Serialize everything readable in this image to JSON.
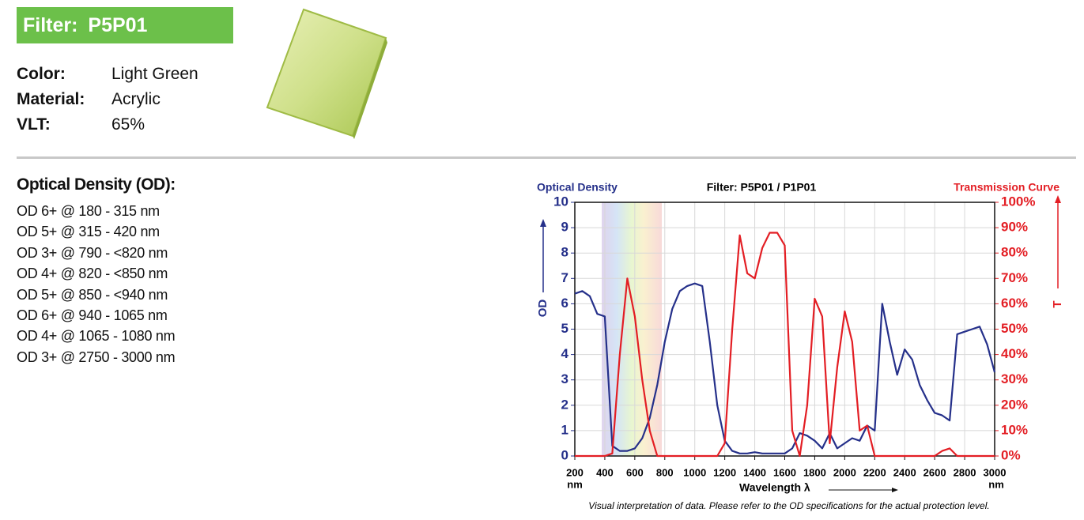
{
  "header": {
    "title": "Filter: P5P01"
  },
  "properties": [
    {
      "label": "Color:",
      "value": "Light Green"
    },
    {
      "label": "Material:",
      "value": "Acrylic"
    },
    {
      "label": "VLT:",
      "value": "65%"
    }
  ],
  "od_section": {
    "title": "Optical Density (OD):",
    "items": [
      "OD 6+ @ 180 - 315 nm",
      "OD 5+ @ 315 - 420 nm",
      "OD 3+ @ 790 - <820 nm",
      "OD 4+ @ 820 - <850 nm",
      "OD 5+ @ 850 - <940 nm",
      "OD 6+ @ 940 - 1065 nm",
      "OD 4+ @ 1065 - 1080 nm",
      "OD 3+ @ 2750 - 3000 nm"
    ]
  },
  "chart_data": {
    "type": "line",
    "title": "Filter: P5P01 / P1P01",
    "x_label": "Wavelength λ",
    "x_unit": "nm",
    "y_label": "OD",
    "y2_label": "T",
    "note": "Visual interpretation of data. Please refer to the OD specifications for the actual protection level.",
    "x": [
      200,
      250,
      300,
      350,
      400,
      450,
      500,
      550,
      600,
      650,
      700,
      750,
      800,
      850,
      900,
      950,
      1000,
      1050,
      1100,
      1150,
      1200,
      1250,
      1300,
      1350,
      1400,
      1450,
      1500,
      1550,
      1600,
      1650,
      1700,
      1750,
      1800,
      1850,
      1900,
      1950,
      2000,
      2050,
      2100,
      2150,
      2200,
      2250,
      2300,
      2350,
      2400,
      2450,
      2500,
      2550,
      2600,
      2650,
      2700,
      2750,
      2800,
      2850,
      2900,
      2950,
      3000
    ],
    "xlim": [
      200,
      3000
    ],
    "xticks": [
      200,
      400,
      600,
      800,
      1000,
      1200,
      1400,
      1600,
      1800,
      2000,
      2200,
      2400,
      2600,
      2800,
      3000
    ],
    "ylim": [
      0,
      10
    ],
    "yticks": [
      0,
      1,
      2,
      3,
      4,
      5,
      6,
      7,
      8,
      9,
      10
    ],
    "y2lim": [
      0,
      100
    ],
    "y2ticks": [
      {
        "value": 0,
        "label": "0%"
      },
      {
        "value": 10,
        "label": "10%"
      },
      {
        "value": 20,
        "label": "20%"
      },
      {
        "value": 30,
        "label": "30%"
      },
      {
        "value": 40,
        "label": "40%"
      },
      {
        "value": 50,
        "label": "50%"
      },
      {
        "value": 60,
        "label": "60%"
      },
      {
        "value": 70,
        "label": "70%"
      },
      {
        "value": 80,
        "label": "80%"
      },
      {
        "value": 90,
        "label": "90%"
      },
      {
        "value": 100,
        "label": "100%"
      }
    ],
    "grid": true,
    "series": [
      {
        "name": "Optical Density",
        "color": "#25308a",
        "values": [
          6.4,
          6.5,
          6.3,
          5.6,
          5.5,
          0.4,
          0.2,
          0.2,
          0.3,
          0.7,
          1.5,
          2.8,
          4.5,
          5.8,
          6.5,
          6.7,
          6.8,
          6.7,
          4.5,
          2.0,
          0.6,
          0.2,
          0.1,
          0.1,
          0.15,
          0.1,
          0.1,
          0.1,
          0.1,
          0.3,
          0.9,
          0.8,
          0.6,
          0.3,
          0.9,
          0.3,
          0.5,
          0.7,
          0.6,
          1.2,
          1.0,
          6.0,
          4.5,
          3.2,
          4.2,
          3.8,
          2.8,
          2.2,
          1.7,
          1.6,
          1.4,
          4.8,
          4.9,
          5.0,
          5.1,
          4.4,
          3.3
        ]
      },
      {
        "name": "Transmission Curve",
        "color": "#e31e24",
        "axis": "y2",
        "values": [
          0,
          0,
          0,
          0,
          0,
          1,
          40,
          70,
          55,
          30,
          10,
          0,
          0,
          0,
          0,
          0,
          0,
          0,
          0,
          0,
          5,
          50,
          87,
          72,
          70,
          82,
          88,
          88,
          83,
          10,
          0,
          20,
          62,
          55,
          5,
          35,
          57,
          45,
          10,
          12,
          0,
          0,
          0,
          0,
          0,
          0,
          0,
          0,
          0,
          2,
          3,
          0,
          0,
          0,
          0,
          0,
          0
        ]
      }
    ]
  }
}
